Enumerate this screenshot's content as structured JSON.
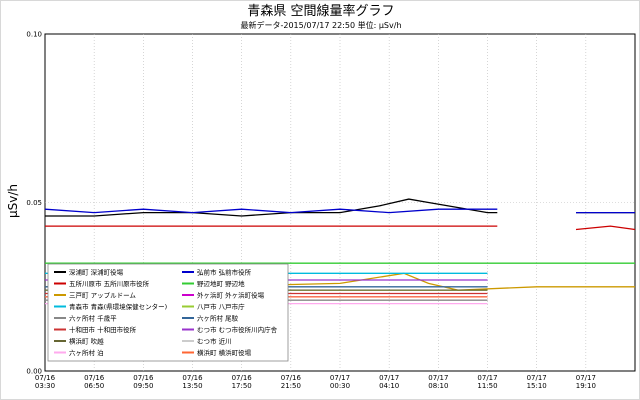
{
  "chart_data": {
    "type": "line",
    "title": "青森県 空間線量率グラフ",
    "subtitle": "最新データ-2015/07/17 22:50 単位: μSv/h",
    "ylabel": "μSv/h",
    "xlabel": "",
    "ylim": [
      0,
      0.1
    ],
    "yticks": [
      "0.00",
      "0.05",
      "0.10"
    ],
    "xticks": [
      [
        "07/16",
        "03:30"
      ],
      [
        "07/16",
        "06:50"
      ],
      [
        "07/16",
        "09:50"
      ],
      [
        "07/16",
        "13:50"
      ],
      [
        "07/16",
        "17:50"
      ],
      [
        "07/16",
        "21:50"
      ],
      [
        "07/17",
        "00:30"
      ],
      [
        "07/17",
        "04:10"
      ],
      [
        "07/17",
        "08:10"
      ],
      [
        "07/17",
        "11:50"
      ],
      [
        "07/17",
        "15:10"
      ],
      [
        "07/17",
        "19:10"
      ]
    ],
    "x_positions": [
      0,
      1,
      2,
      3,
      4,
      5,
      6,
      7,
      8,
      9,
      10,
      11
    ],
    "xlim": [
      0,
      12
    ],
    "gaps": [
      [
        9.2,
        10.8
      ]
    ],
    "grid": true,
    "legend_position": "bottom-left",
    "series": [
      {
        "name": "深浦町 深浦町役場",
        "color": "#000000",
        "points": [
          [
            0,
            0.046
          ],
          [
            1,
            0.046
          ],
          [
            2,
            0.047
          ],
          [
            3,
            0.047
          ],
          [
            4,
            0.046
          ],
          [
            5,
            0.047
          ],
          [
            6,
            0.047
          ],
          [
            6.8,
            0.049
          ],
          [
            7.4,
            0.051
          ],
          [
            7.8,
            0.05
          ],
          [
            8.2,
            0.049
          ],
          [
            9,
            0.047
          ],
          [
            9.2,
            0.047
          ],
          [
            10.8,
            0.047
          ],
          [
            12,
            0.047
          ]
        ]
      },
      {
        "name": "弘前市 弘前市役所",
        "color": "#0000cc",
        "points": [
          [
            0,
            0.048
          ],
          [
            1,
            0.047
          ],
          [
            2,
            0.048
          ],
          [
            3,
            0.047
          ],
          [
            4,
            0.048
          ],
          [
            5,
            0.047
          ],
          [
            6,
            0.048
          ],
          [
            7,
            0.047
          ],
          [
            8,
            0.048
          ],
          [
            9,
            0.048
          ],
          [
            9.2,
            0.048
          ],
          [
            10.8,
            0.047
          ],
          [
            12,
            0.047
          ]
        ]
      },
      {
        "name": "五所川原市 五所川原市役所",
        "color": "#cc0000",
        "points": [
          [
            0,
            0.043
          ],
          [
            2,
            0.043
          ],
          [
            4,
            0.043
          ],
          [
            6,
            0.043
          ],
          [
            8,
            0.043
          ],
          [
            9.2,
            0.043
          ],
          [
            10.8,
            0.042
          ],
          [
            11.5,
            0.043
          ],
          [
            12,
            0.042
          ]
        ]
      },
      {
        "name": "野辺地町 野辺地",
        "color": "#33cc33",
        "points": [
          [
            0,
            0.032
          ],
          [
            2,
            0.032
          ],
          [
            4,
            0.032
          ],
          [
            6,
            0.032
          ],
          [
            8,
            0.032
          ],
          [
            10,
            0.032
          ],
          [
            12,
            0.032
          ]
        ]
      },
      {
        "name": "三戸町 アップルドーム",
        "color": "#cc9900",
        "points": [
          [
            0,
            0.025
          ],
          [
            3,
            0.025
          ],
          [
            6,
            0.026
          ],
          [
            7.3,
            0.029
          ],
          [
            7.8,
            0.026
          ],
          [
            8.4,
            0.024
          ],
          [
            10,
            0.025
          ],
          [
            12,
            0.025
          ]
        ]
      },
      {
        "name": "外ヶ浜町 外ヶ浜町役場",
        "color": "#cc00cc",
        "points": [
          [
            0,
            0.022
          ],
          [
            3,
            0.022
          ],
          [
            6,
            0.022
          ],
          [
            9,
            0.022
          ],
          [
            12,
            0.022
          ]
        ]
      },
      {
        "name": "青森市 青森(県環境保健センター)",
        "color": "#00bbdd",
        "points": [
          [
            0,
            0.029
          ],
          [
            3,
            0.029
          ],
          [
            6,
            0.029
          ],
          [
            9,
            0.029
          ],
          [
            12,
            0.029
          ]
        ]
      },
      {
        "name": "八戸市 八戸市庁",
        "color": "#99cc33",
        "points": [
          [
            0,
            0.024
          ],
          [
            3,
            0.024
          ],
          [
            6,
            0.024
          ],
          [
            9,
            0.024
          ],
          [
            12,
            0.024
          ]
        ]
      },
      {
        "name": "六ヶ所村 千歳平",
        "color": "#888888",
        "points": [
          [
            0,
            0.021
          ],
          [
            3,
            0.021
          ],
          [
            6,
            0.021
          ],
          [
            9,
            0.021
          ],
          [
            12,
            0.021
          ]
        ]
      },
      {
        "name": "六ヶ所村 尾駮",
        "color": "#336699",
        "points": [
          [
            0,
            0.025
          ],
          [
            3,
            0.025
          ],
          [
            6,
            0.025
          ],
          [
            9,
            0.025
          ],
          [
            12,
            0.025
          ]
        ]
      },
      {
        "name": "十和田市 十和田市役所",
        "color": "#cc3333",
        "points": [
          [
            0,
            0.023
          ],
          [
            3,
            0.023
          ],
          [
            6,
            0.023
          ],
          [
            9,
            0.023
          ],
          [
            12,
            0.023
          ]
        ]
      },
      {
        "name": "むつ市 むつ市役所川内庁舎",
        "color": "#9933cc",
        "points": [
          [
            0,
            0.027
          ],
          [
            3,
            0.027
          ],
          [
            6,
            0.027
          ],
          [
            9,
            0.027
          ],
          [
            12,
            0.027
          ]
        ]
      },
      {
        "name": "横浜町 吹越",
        "color": "#666633",
        "points": [
          [
            0,
            0.024
          ],
          [
            3,
            0.024
          ],
          [
            6,
            0.024
          ],
          [
            9,
            0.024
          ],
          [
            12,
            0.024
          ]
        ]
      },
      {
        "name": "むつ市 近川",
        "color": "#cccccc",
        "points": [
          [
            0,
            0.022
          ],
          [
            3,
            0.022
          ],
          [
            6,
            0.022
          ],
          [
            9,
            0.022
          ],
          [
            12,
            0.022
          ]
        ]
      },
      {
        "name": "六ヶ所村 泊",
        "color": "#ffaaee",
        "points": [
          [
            0,
            0.02
          ],
          [
            3,
            0.02
          ],
          [
            6,
            0.02
          ],
          [
            9,
            0.02
          ],
          [
            12,
            0.02
          ]
        ]
      },
      {
        "name": "横浜町 横浜町役場",
        "color": "#ff6633",
        "points": [
          [
            0,
            0.022
          ],
          [
            3,
            0.022
          ],
          [
            6,
            0.022
          ],
          [
            9,
            0.022
          ],
          [
            12,
            0.022
          ]
        ]
      }
    ]
  }
}
